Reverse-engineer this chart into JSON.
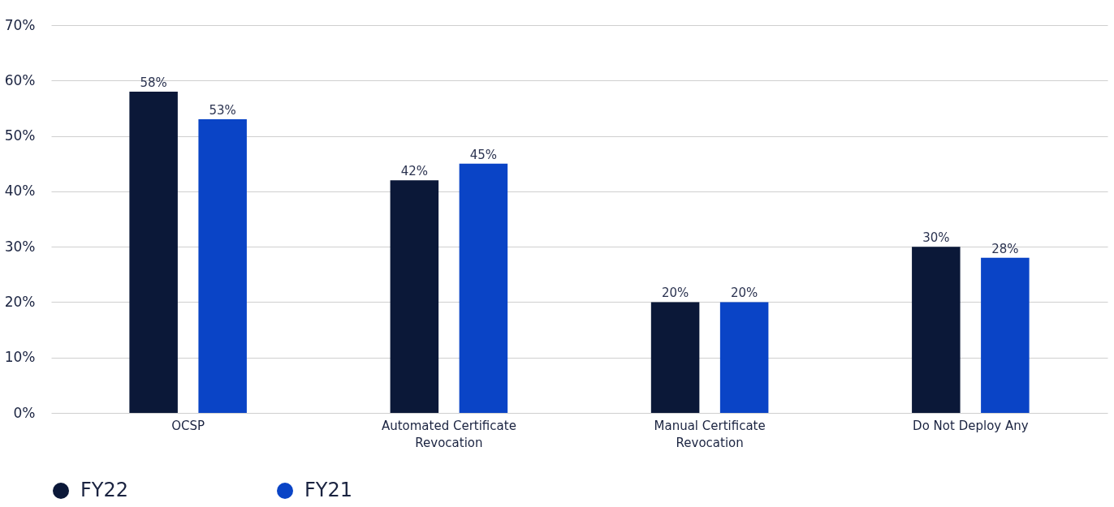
{
  "chart_data": {
    "type": "bar",
    "categories": [
      "OCSP",
      "Automated Certificate Revocation",
      "Manual Certificate Revocation",
      "Do Not Deploy Any"
    ],
    "series": [
      {
        "name": "FY22",
        "color": "#0b1838",
        "values": [
          58,
          42,
          20,
          30
        ],
        "value_labels": [
          "58%",
          "42%",
          "20%",
          "30%"
        ]
      },
      {
        "name": "FY21",
        "color": "#0a44c6",
        "values": [
          53,
          45,
          20,
          28
        ],
        "value_labels": [
          "53%",
          "45%",
          "20%",
          "28%"
        ]
      }
    ],
    "ylim": [
      0,
      70
    ],
    "yticks": [
      {
        "value": 0,
        "label": "0%"
      },
      {
        "value": 10,
        "label": "10%"
      },
      {
        "value": 20,
        "label": "20%"
      },
      {
        "value": 30,
        "label": "30%"
      },
      {
        "value": 40,
        "label": "40%"
      },
      {
        "value": 50,
        "label": "50%"
      },
      {
        "value": 60,
        "label": "60%"
      },
      {
        "value": 70,
        "label": "70%"
      }
    ],
    "grid": "y",
    "legend": "bottom"
  }
}
